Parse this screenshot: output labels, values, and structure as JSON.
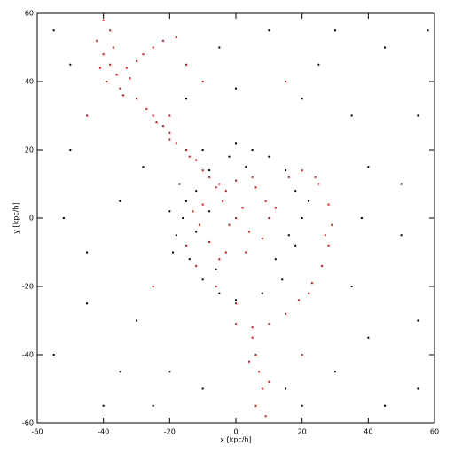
{
  "chart_data": {
    "type": "scatter",
    "xlabel": "x [kpc/h]",
    "ylabel": "y [kpc/h]",
    "xlim": [
      -60,
      60
    ],
    "ylim": [
      -60,
      60
    ],
    "xticks": [
      -60,
      -40,
      -20,
      0,
      20,
      40,
      60
    ],
    "yticks": [
      -60,
      -40,
      -20,
      0,
      20,
      40,
      60
    ],
    "series": [
      {
        "color": "#000000",
        "x": [
          -15,
          -18,
          -14,
          -10,
          -5,
          0,
          -16,
          -12,
          -8,
          -2,
          5,
          10,
          15,
          18,
          20,
          18,
          12,
          -19,
          -17,
          -6,
          14,
          8,
          -10,
          0,
          -20,
          -12,
          -8,
          22,
          16,
          3,
          -55,
          -50,
          -45,
          -55,
          -40,
          -30,
          -35,
          -50,
          -20,
          -10,
          15,
          30,
          45,
          55,
          50,
          40,
          55,
          45,
          30,
          10,
          -5,
          35,
          40,
          -25,
          20,
          35,
          -45,
          -28,
          50,
          25,
          -52,
          58,
          0,
          -15,
          38,
          -35,
          55,
          20
        ],
        "y": [
          5,
          -5,
          -12,
          -18,
          -22,
          -24,
          0,
          8,
          14,
          18,
          20,
          18,
          14,
          8,
          0,
          -8,
          -12,
          -10,
          10,
          -15,
          -18,
          -22,
          20,
          22,
          2,
          -4,
          2,
          5,
          -5,
          15,
          55,
          20,
          -10,
          -40,
          -55,
          -30,
          5,
          45,
          -45,
          -50,
          -50,
          -45,
          -55,
          -30,
          -5,
          15,
          30,
          50,
          55,
          55,
          50,
          -20,
          -35,
          -55,
          35,
          30,
          -25,
          15,
          10,
          45,
          0,
          55,
          38,
          35,
          0,
          -45,
          -50,
          -55
        ]
      },
      {
        "color": "#ff0000",
        "x": [
          -42,
          -40,
          -38,
          -36,
          -39,
          -35,
          -33,
          -30,
          -28,
          -25,
          -22,
          -18,
          -37,
          -41,
          -34,
          -38,
          -40,
          -32,
          -30,
          -27,
          -25,
          -22,
          -20,
          -18,
          -15,
          -12,
          -10,
          -8,
          -5,
          -3,
          -14,
          -20,
          -24,
          10,
          9,
          6,
          0,
          -6,
          -10,
          -11,
          -8,
          -3,
          3,
          8,
          12,
          -13,
          5,
          -5,
          2,
          -2,
          4,
          -4,
          0,
          20,
          25,
          28,
          29,
          28,
          26,
          23,
          19,
          15,
          10,
          5,
          0,
          24,
          27,
          22,
          16,
          -15,
          -12,
          -6,
          0,
          5,
          6,
          7,
          8,
          6,
          9,
          4,
          10,
          -20,
          -10,
          -45,
          15,
          -25,
          20,
          -15
        ],
        "y": [
          52,
          48,
          45,
          42,
          40,
          38,
          44,
          46,
          48,
          50,
          52,
          53,
          50,
          44,
          36,
          55,
          58,
          41,
          35,
          32,
          30,
          27,
          25,
          22,
          20,
          17,
          14,
          12,
          10,
          8,
          18,
          23,
          28,
          0,
          5,
          9,
          11,
          9,
          4,
          -2,
          -7,
          -10,
          -10,
          -6,
          3,
          2,
          12,
          -12,
          3,
          -2,
          -4,
          5,
          0,
          14,
          10,
          4,
          -2,
          -8,
          -14,
          -19,
          -24,
          -28,
          -31,
          -32,
          -31,
          12,
          -5,
          -22,
          12,
          -8,
          -14,
          -20,
          -25,
          -35,
          -40,
          -45,
          -50,
          -55,
          -58,
          -42,
          -48,
          30,
          40,
          30,
          40,
          -20,
          -40,
          45
        ]
      }
    ]
  }
}
